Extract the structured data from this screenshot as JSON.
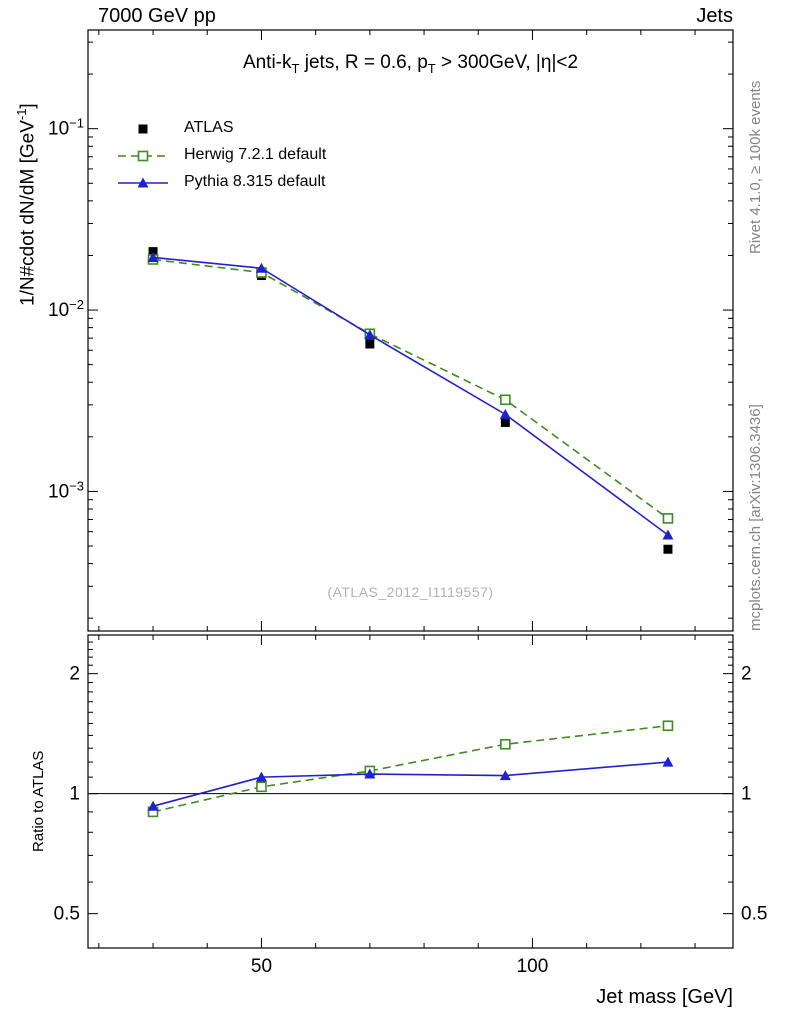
{
  "header": {
    "left": "7000 GeV pp",
    "right": "Jets"
  },
  "title_parts": {
    "p1": "Anti-k",
    "s1": "T",
    "p2": " jets, R = 0.6, p",
    "s2": "T",
    "p3": " > 300GeV, |η|<2"
  },
  "watermark": "(ATLAS_2012_I1119557)",
  "side_texts": {
    "top_right": "Rivet 4.1.0, ≥ 100k events",
    "bottom_right": "mcplots.cern.ch [arXiv:1306.3436]"
  },
  "axes": {
    "y_label_parts": {
      "pre": "1/N#cdot dN/dM [GeV",
      "sup": "-1",
      "post": "]"
    },
    "ratio_label": "Ratio to ATLAS",
    "x_label": "Jet mass [GeV]"
  },
  "chart_data": {
    "type": "line",
    "x": [
      30,
      50,
      70,
      95,
      125
    ],
    "xlim": [
      18,
      137
    ],
    "x_major_ticks": [
      50,
      100
    ],
    "x_minor_step": 10,
    "top_panel": {
      "ylog": true,
      "ylim": [
        0.00017,
        0.35
      ],
      "ytick_decades": [
        -1,
        -2,
        -3
      ],
      "series": [
        {
          "name": "ATLAS",
          "label": "ATLAS",
          "color": "#000000",
          "marker": "square-filled",
          "line": "none",
          "values": [
            0.021,
            0.0155,
            0.0065,
            0.0024,
            0.00048
          ]
        },
        {
          "name": "Herwig",
          "label": "Herwig 7.2.1 default",
          "color": "#3c8c20",
          "marker": "square-open",
          "line": "dashed",
          "values": [
            0.019,
            0.0161,
            0.0074,
            0.0032,
            0.00071
          ]
        },
        {
          "name": "Pythia",
          "label": "Pythia 8.315 default",
          "color": "#2121cc",
          "marker": "triangle-filled",
          "line": "solid",
          "values": [
            0.0195,
            0.017,
            0.0073,
            0.00266,
            0.000575
          ]
        }
      ]
    },
    "ratio_panel": {
      "ylog": true,
      "ylim": [
        0.41,
        2.5
      ],
      "yticks": [
        0.5,
        1,
        2
      ],
      "reference": 1,
      "series": [
        {
          "name": "Herwig",
          "color": "#3c8c20",
          "marker": "square-open",
          "line": "dashed",
          "values": [
            0.9,
            1.04,
            1.14,
            1.33,
            1.48
          ]
        },
        {
          "name": "Pythia",
          "color": "#2121cc",
          "marker": "triangle-filled",
          "line": "solid",
          "values": [
            0.93,
            1.1,
            1.12,
            1.11,
            1.2
          ]
        }
      ]
    }
  }
}
